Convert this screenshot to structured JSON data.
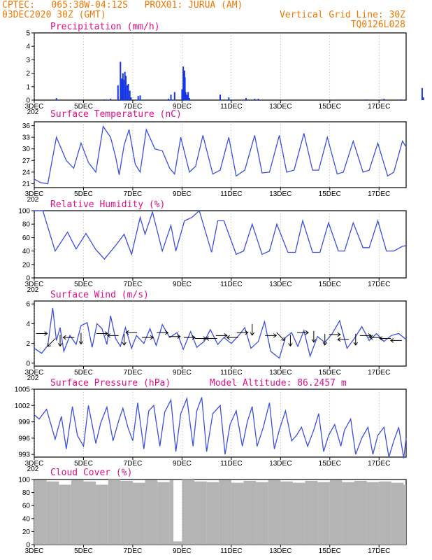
{
  "header": {
    "line1": "CPTEC:   065:38W-04:12S   PROX01: JURUA (AM)",
    "line2": "03DEC2020 30Z (GMT)",
    "grid_note": "Vertical Grid Line: 30Z",
    "run_id": "TQ0126L028"
  },
  "x_axis": {
    "tick_labels": [
      "3DEC",
      "5DEC",
      "7DEC",
      "9DEC",
      "11DEC",
      "13DEC",
      "15DEC",
      "17DEC"
    ],
    "tick_days": [
      0,
      2,
      4,
      6,
      8,
      10,
      12,
      14
    ],
    "span_days": 15.1,
    "overlap_label": "202"
  },
  "colors": {
    "line": "#3b4fe0",
    "bars": "#1535e8",
    "cloud": "#b4b4b4",
    "title": "#e0108a",
    "header": "#f07800"
  },
  "chart_data": [
    {
      "type": "bar",
      "title": "Precipitation (mm/h)",
      "ylim": [
        0,
        5
      ],
      "yticks": [
        0,
        1,
        2,
        3,
        4,
        5
      ],
      "x_days": [
        0.9,
        1.8,
        2.85,
        3.1,
        3.4,
        3.5,
        3.55,
        3.6,
        3.62,
        3.68,
        3.72,
        3.78,
        3.82,
        3.88,
        3.93,
        4.22,
        4.3,
        5.45,
        5.55,
        5.7,
        6.0,
        6.05,
        6.1,
        6.12,
        6.15,
        6.2,
        6.25,
        6.3,
        7.55,
        7.9,
        8.6,
        8.95,
        9.1,
        13.5,
        14.2,
        14.9,
        15.75,
        15.8,
        16.4
      ],
      "values": [
        0.15,
        0.05,
        0.05,
        0.1,
        1.1,
        2.85,
        1.6,
        2.0,
        1.5,
        2.1,
        1.8,
        1.1,
        1.2,
        0.7,
        0.2,
        0.3,
        0.35,
        0.1,
        0.4,
        0.6,
        0.8,
        2.5,
        2.2,
        1.7,
        0.6,
        0.4,
        0.6,
        0.15,
        0.4,
        0.2,
        0.15,
        0.1,
        0.1,
        0.05,
        0.1,
        0.05,
        0.9,
        0.2,
        0.15
      ]
    },
    {
      "type": "line",
      "title": "Surface Temperature (nC)",
      "ylim": [
        20,
        37
      ],
      "yticks": [
        21,
        24,
        27,
        30,
        33,
        36
      ],
      "x_days": [
        0,
        0.25,
        0.55,
        0.9,
        1.3,
        1.6,
        1.9,
        2.2,
        2.5,
        2.8,
        3.1,
        3.3,
        3.45,
        3.65,
        3.85,
        4.1,
        4.3,
        4.55,
        4.9,
        5.2,
        5.5,
        5.7,
        5.95,
        6.3,
        6.55,
        6.85,
        7.25,
        7.55,
        7.9,
        8.2,
        8.55,
        8.95,
        9.25,
        9.55,
        9.95,
        10.25,
        10.55,
        10.95,
        11.3,
        11.55,
        11.9,
        12.3,
        12.55,
        12.95,
        13.35,
        13.6,
        13.95,
        14.35,
        14.6,
        14.95,
        15.1
      ],
      "values": [
        22.2,
        21.3,
        21.0,
        33.0,
        27.0,
        25.0,
        31.5,
        26.5,
        24.0,
        35.8,
        33.0,
        28.0,
        23.3,
        31.0,
        35.0,
        26.0,
        24.0,
        35.0,
        30.0,
        29.5,
        25.0,
        23.5,
        33.0,
        24.0,
        25.5,
        33.5,
        23.5,
        24.5,
        33.0,
        23.0,
        24.5,
        33.5,
        23.8,
        24.0,
        33.5,
        24.0,
        24.5,
        34.0,
        24.5,
        24.5,
        33.0,
        23.5,
        24.0,
        32.0,
        24.0,
        24.5,
        31.5,
        23.0,
        24.0,
        32.0,
        30.5
      ]
    },
    {
      "type": "line",
      "title": "Relative Humidity (%)",
      "ylim": [
        0,
        100
      ],
      "yticks": [
        0,
        20,
        40,
        60,
        80,
        100
      ],
      "x_days": [
        0,
        0.35,
        0.85,
        1.35,
        1.7,
        2.1,
        2.5,
        2.85,
        3.3,
        3.65,
        3.95,
        4.3,
        4.5,
        4.8,
        5.2,
        5.55,
        5.75,
        6.1,
        6.4,
        6.7,
        7.2,
        7.45,
        7.7,
        8.2,
        8.5,
        8.85,
        9.25,
        9.55,
        9.85,
        10.3,
        10.6,
        10.9,
        11.3,
        11.6,
        11.95,
        12.35,
        12.6,
        12.95,
        13.35,
        13.6,
        13.95,
        14.3,
        14.6,
        14.95,
        15.1
      ],
      "values": [
        100,
        100,
        40,
        68,
        43,
        66,
        42,
        28,
        48,
        65,
        35,
        90,
        65,
        98,
        40,
        78,
        40,
        85,
        90,
        100,
        38,
        85,
        85,
        35,
        40,
        80,
        35,
        40,
        80,
        38,
        38,
        85,
        38,
        38,
        82,
        40,
        40,
        82,
        45,
        45,
        85,
        40,
        40,
        47,
        48
      ]
    },
    {
      "type": "line",
      "title": "Surface Wind (m/s)",
      "ylim": [
        -0.3,
        6.3
      ],
      "yticks": [
        0,
        2,
        4,
        6
      ],
      "x_days": [
        0,
        0.3,
        0.55,
        0.75,
        0.9,
        1.05,
        1.2,
        1.45,
        1.7,
        1.9,
        2.15,
        2.35,
        2.55,
        2.75,
        2.95,
        3.1,
        3.3,
        3.5,
        3.7,
        3.95,
        4.15,
        4.45,
        4.7,
        4.95,
        5.2,
        5.5,
        5.8,
        6.05,
        6.35,
        6.6,
        6.9,
        7.15,
        7.45,
        7.7,
        8.0,
        8.3,
        8.55,
        8.8,
        9.1,
        9.35,
        9.6,
        9.95,
        10.2,
        10.45,
        10.7,
        10.95,
        11.2,
        11.5,
        11.8,
        12.1,
        12.4,
        12.7,
        13.0,
        13.3,
        13.6,
        13.9,
        14.2,
        14.5,
        14.8,
        15.1
      ],
      "values": [
        1.5,
        1.0,
        1.8,
        5.6,
        2.3,
        3.6,
        1.2,
        2.8,
        1.9,
        3.8,
        4.1,
        1.6,
        4.0,
        3.5,
        1.9,
        4.8,
        2.5,
        1.7,
        3.6,
        1.5,
        2.8,
        2.0,
        3.5,
        1.8,
        3.9,
        2.6,
        3.1,
        1.4,
        3.2,
        1.6,
        2.2,
        3.4,
        1.9,
        2.6,
        2.0,
        2.8,
        3.6,
        1.5,
        2.2,
        4.2,
        1.2,
        0.5,
        2.6,
        3.1,
        1.7,
        3.3,
        0.7,
        2.7,
        2.1,
        3.0,
        4.3,
        1.5,
        2.5,
        3.7,
        2.3,
        3.0,
        2.2,
        2.8,
        3.0,
        2.4
      ],
      "arrows": [
        {
          "day": 0.3,
          "speed": 3.0,
          "dir": "E"
        },
        {
          "day": 0.7,
          "speed": 2.1,
          "dir": "SW"
        },
        {
          "day": 1.05,
          "speed": 2.3,
          "dir": "S"
        },
        {
          "day": 1.4,
          "speed": 2.6,
          "dir": "W"
        },
        {
          "day": 1.9,
          "speed": 2.5,
          "dir": "S"
        },
        {
          "day": 2.75,
          "speed": 3.0,
          "dir": "E"
        },
        {
          "day": 3.2,
          "speed": 2.8,
          "dir": "W"
        },
        {
          "day": 3.65,
          "speed": 2.4,
          "dir": "S"
        },
        {
          "day": 3.95,
          "speed": 3.1,
          "dir": "W"
        },
        {
          "day": 4.6,
          "speed": 2.6,
          "dir": "E"
        },
        {
          "day": 5.2,
          "speed": 3.1,
          "dir": "E"
        },
        {
          "day": 5.7,
          "speed": 2.7,
          "dir": "E"
        },
        {
          "day": 6.3,
          "speed": 2.6,
          "dir": "E"
        },
        {
          "day": 6.75,
          "speed": 2.5,
          "dir": "E"
        },
        {
          "day": 7.2,
          "speed": 2.5,
          "dir": "W"
        },
        {
          "day": 7.6,
          "speed": 2.8,
          "dir": "E"
        },
        {
          "day": 8.05,
          "speed": 2.6,
          "dir": "W"
        },
        {
          "day": 8.45,
          "speed": 3.1,
          "dir": "E"
        },
        {
          "day": 8.85,
          "speed": 3.4,
          "dir": "S"
        },
        {
          "day": 9.6,
          "speed": 2.8,
          "dir": "E"
        },
        {
          "day": 10.0,
          "speed": 2.7,
          "dir": "SE"
        },
        {
          "day": 10.4,
          "speed": 2.3,
          "dir": "S"
        },
        {
          "day": 10.9,
          "speed": 3.1,
          "dir": "E"
        },
        {
          "day": 11.35,
          "speed": 2.7,
          "dir": "S"
        },
        {
          "day": 11.8,
          "speed": 2.4,
          "dir": "S"
        },
        {
          "day": 12.2,
          "speed": 2.9,
          "dir": "E"
        },
        {
          "day": 12.55,
          "speed": 2.4,
          "dir": "W"
        },
        {
          "day": 13.05,
          "speed": 2.4,
          "dir": "S"
        },
        {
          "day": 13.45,
          "speed": 2.8,
          "dir": "E"
        },
        {
          "day": 13.85,
          "speed": 2.6,
          "dir": "W"
        },
        {
          "day": 14.25,
          "speed": 2.5,
          "dir": "W"
        },
        {
          "day": 14.7,
          "speed": 2.3,
          "dir": "W"
        }
      ]
    },
    {
      "type": "line",
      "title": "Surface Pressure (hPa)",
      "annotation": "Model Altitude: 86.2457  m",
      "ylim": [
        992.5,
        1005
      ],
      "yticks": [
        993,
        996,
        999,
        1002,
        1005
      ],
      "x_days": [
        0,
        0.2,
        0.5,
        0.85,
        1.1,
        1.3,
        1.55,
        1.75,
        2.0,
        2.2,
        2.5,
        2.7,
        2.95,
        3.2,
        3.45,
        3.6,
        3.8,
        4.0,
        4.2,
        4.45,
        4.65,
        4.85,
        5.1,
        5.3,
        5.55,
        5.75,
        5.95,
        6.2,
        6.45,
        6.6,
        6.8,
        7.0,
        7.25,
        7.55,
        7.75,
        7.95,
        8.2,
        8.45,
        8.65,
        8.85,
        9.05,
        9.3,
        9.55,
        9.75,
        9.95,
        10.2,
        10.45,
        10.65,
        10.85,
        11.1,
        11.35,
        11.55,
        11.75,
        11.95,
        12.2,
        12.45,
        12.6,
        12.85,
        13.05,
        13.3,
        13.55,
        13.75,
        13.95,
        14.2,
        14.4,
        14.6,
        14.8,
        15.0,
        15.1
      ],
      "values": [
        1000.3,
        999.5,
        1001.3,
        995.8,
        1000.0,
        994.0,
        1001.8,
        996.5,
        994.5,
        1002.0,
        995.0,
        998.8,
        1001.7,
        995.5,
        999.5,
        1001.5,
        998.0,
        995.5,
        1002.5,
        994.0,
        1001.0,
        1002.0,
        994.5,
        1000.8,
        1003.0,
        993.5,
        1000.5,
        1003.3,
        994.5,
        1001.0,
        1003.5,
        993.5,
        1000.5,
        1002.0,
        993.0,
        998.5,
        1001.0,
        994.5,
        999.0,
        1001.8,
        994.5,
        998.0,
        1002.5,
        994.0,
        997.5,
        1001.0,
        995.5,
        996.5,
        998.0,
        994.5,
        997.5,
        1000.5,
        993.5,
        996.5,
        998.5,
        994.5,
        997.5,
        999.5,
        993.0,
        996.0,
        998.0,
        993.0,
        996.5,
        998.0,
        992.5,
        995.5,
        998.0,
        992.3,
        996.0
      ]
    },
    {
      "type": "bar",
      "title": "Cloud Cover (%)",
      "ylim": [
        0,
        100
      ],
      "yticks": [
        0,
        20,
        40,
        60,
        80,
        100
      ],
      "x_days": [
        0,
        0.5,
        1.0,
        1.5,
        2.0,
        2.5,
        3.0,
        3.5,
        4.0,
        4.5,
        5.0,
        5.5,
        5.65,
        6.0,
        6.5,
        7.0,
        7.5,
        8.0,
        8.5,
        9.0,
        9.5,
        10.0,
        10.5,
        11.0,
        11.5,
        12.0,
        12.5,
        13.0,
        13.5,
        14.0,
        14.5,
        15.0
      ],
      "values": [
        99,
        97,
        92,
        99,
        97,
        92,
        100,
        98,
        95,
        99,
        96,
        99,
        5,
        100,
        97,
        96,
        99,
        95,
        98,
        96,
        99,
        97,
        95,
        98,
        96,
        99,
        96,
        98,
        96,
        97,
        95,
        92
      ]
    }
  ]
}
